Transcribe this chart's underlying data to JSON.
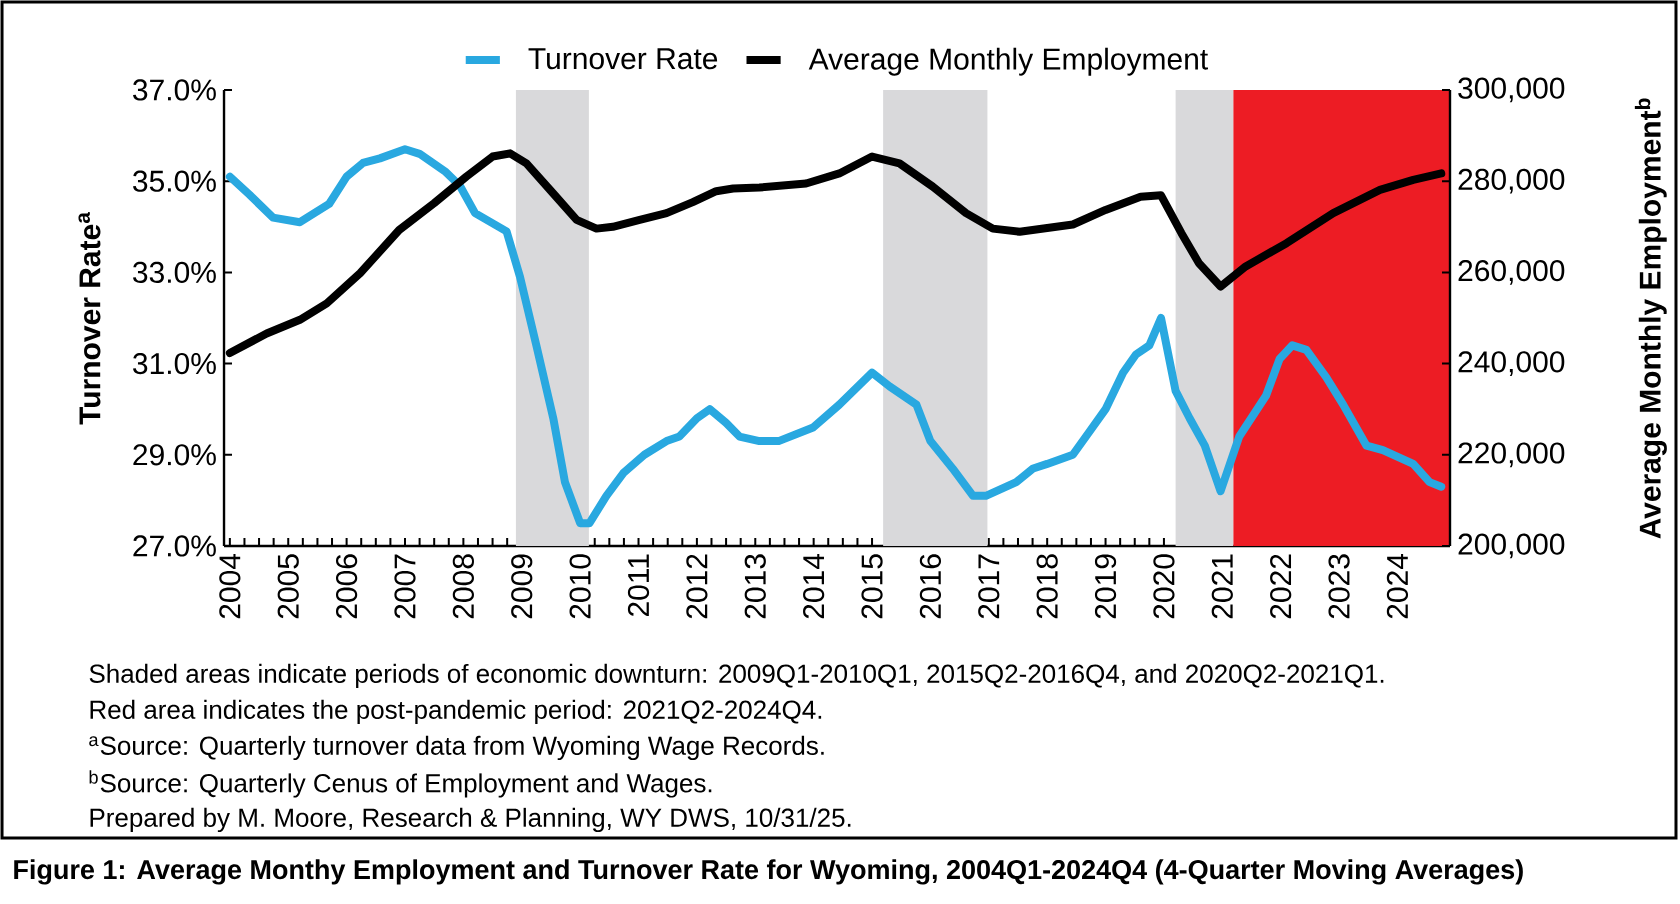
{
  "chart_data": {
    "type": "line",
    "title": "Figure 1: Average Monthy Employment and Turnover Rate for Wyoming, 2004Q1-2024Q4 (4-Quarter Moving Averages)",
    "ylabel": "Turnover Rate$^{a}$",
    "y2label": "Average Monthly Employment$^{b}$",
    "xlim": [
      2003.9,
      2024.9
    ],
    "xticks": [
      2004,
      2005,
      2006,
      2007,
      2008,
      2009,
      2010,
      2011,
      2012,
      2013,
      2014,
      2015,
      2016,
      2017,
      2018,
      2019,
      2020,
      2021,
      2022,
      2023,
      2024
    ],
    "ylim": [
      27,
      37
    ],
    "yticks": [
      {
        "value": 27,
        "label": "27.0%"
      },
      {
        "value": 29,
        "label": "29.0%"
      },
      {
        "value": 31,
        "label": "31.0%"
      },
      {
        "value": 33,
        "label": "33.0%"
      },
      {
        "value": 35,
        "label": "35.0%"
      },
      {
        "value": 37,
        "label": "37.0%"
      }
    ],
    "y2lim": [
      200000,
      300000
    ],
    "y2ticks": [
      {
        "value": 200000,
        "label": "200,000"
      },
      {
        "value": 220000,
        "label": "220,000"
      },
      {
        "value": 240000,
        "label": "240,000"
      },
      {
        "value": 260000,
        "label": "260,000"
      },
      {
        "value": 280000,
        "label": "280,000"
      },
      {
        "value": 300000,
        "label": "300,000"
      }
    ],
    "legend": "top",
    "series": [
      {
        "name": "Turnover Rate",
        "color": "#29a8e0",
        "x": [
          2004.0,
          2004.34,
          2004.74,
          2005.2,
          2005.7,
          2006.0,
          2006.28,
          2006.57,
          2007.0,
          2007.25,
          2007.7,
          2007.94,
          2008.2,
          2008.74,
          2008.97,
          2009.25,
          2009.54,
          2009.74,
          2010.0,
          2010.16,
          2010.45,
          2010.74,
          2011.1,
          2011.48,
          2011.7,
          2012.0,
          2012.22,
          2012.5,
          2012.73,
          2013.07,
          2013.4,
          2013.99,
          2014.44,
          2015.0,
          2015.3,
          2015.76,
          2016.0,
          2016.38,
          2016.73,
          2016.95,
          2017.3,
          2017.47,
          2017.76,
          2018.0,
          2018.44,
          2018.72,
          2019.0,
          2019.3,
          2019.52,
          2019.75,
          2019.95,
          2020.2,
          2020.44,
          2020.7,
          2020.97,
          2021.29,
          2021.75,
          2021.98,
          2022.2,
          2022.44,
          2022.78,
          2023.07,
          2023.47,
          2023.75,
          2024.27,
          2024.55,
          2024.75
        ],
        "values": [
          35.1,
          34.7,
          34.2,
          34.1,
          34.5,
          35.1,
          35.4,
          35.5,
          35.7,
          35.6,
          35.2,
          34.9,
          34.3,
          33.9,
          32.9,
          31.4,
          29.8,
          28.4,
          27.5,
          27.5,
          28.1,
          28.6,
          29.0,
          29.3,
          29.4,
          29.8,
          30.0,
          29.7,
          29.4,
          29.3,
          29.3,
          29.6,
          30.1,
          30.8,
          30.5,
          30.1,
          29.3,
          28.7,
          28.1,
          28.1,
          28.3,
          28.4,
          28.7,
          28.8,
          29.0,
          29.5,
          30.0,
          30.8,
          31.2,
          31.4,
          32.0,
          30.4,
          29.8,
          29.2,
          28.2,
          29.4,
          30.3,
          31.1,
          31.4,
          31.3,
          30.7,
          30.1,
          29.2,
          29.1,
          28.8,
          28.4,
          28.3
        ]
      },
      {
        "name": "Average Monthly Employment",
        "color": "#000000",
        "axis": "y2",
        "x": [
          2004.0,
          2004.63,
          2005.2,
          2005.66,
          2006.23,
          2006.9,
          2007.5,
          2008.05,
          2008.5,
          2008.8,
          2009.08,
          2009.54,
          2009.94,
          2010.28,
          2010.56,
          2011.02,
          2011.48,
          2011.93,
          2012.33,
          2012.62,
          2013.07,
          2013.87,
          2014.44,
          2015.0,
          2015.47,
          2016.04,
          2016.61,
          2017.07,
          2017.53,
          2018.44,
          2019.0,
          2019.6,
          2019.95,
          2020.3,
          2020.6,
          2020.97,
          2021.4,
          2022.1,
          2022.9,
          2023.7,
          2024.27,
          2024.75
        ],
        "values": [
          242300,
          246600,
          249600,
          253200,
          259800,
          269300,
          275200,
          281000,
          285400,
          286100,
          283900,
          277300,
          271500,
          269600,
          270000,
          271500,
          273000,
          275400,
          277800,
          278400,
          278600,
          279500,
          281700,
          285400,
          283900,
          278800,
          273000,
          269600,
          268900,
          270500,
          273700,
          276600,
          276900,
          268600,
          262000,
          256900,
          261300,
          266400,
          273000,
          278100,
          280300,
          281700
        ]
      }
    ],
    "bands": [
      {
        "axis": "x",
        "from": 2008.9,
        "to": 2010.15,
        "color": "#d9d9db"
      },
      {
        "axis": "x",
        "from": 2015.19,
        "to": 2016.98,
        "color": "#d9d9db"
      },
      {
        "axis": "x",
        "from": 2020.2,
        "to": 2021.19,
        "color": "#d9d9db"
      },
      {
        "axis": "x",
        "from": 2021.19,
        "to": 2024.9,
        "color": "#ed1c24"
      }
    ],
    "annotations": [
      "Shaded areas indicate periods of economic downturn: 2009Q1-2010Q1, 2015Q2-2016Q4, and 2020Q2-2021Q1.",
      "Red area indicates the post-pandemic period: 2021Q2-2024Q4.",
      "$^{a}$Source: Quarterly turnover data from Wyoming Wage Records.",
      "$^{b}$Source: Quarterly Cenus of Employment and Wages.",
      "Prepared by M. Moore, Research & Planning, WY DWS, 10/31/25."
    ]
  }
}
